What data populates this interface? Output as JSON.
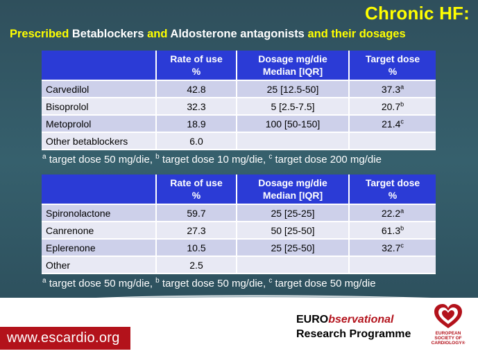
{
  "header": {
    "title": "Chronic HF:",
    "subtitle_parts": [
      "Prescribed ",
      "Betablockers",
      " and ",
      "Aldosterone antagonists",
      " and their dosages"
    ]
  },
  "table1": {
    "headers": [
      {
        "line1": "",
        "line2": ""
      },
      {
        "line1": "Rate of use",
        "line2": "%"
      },
      {
        "line1": "Dosage mg/die",
        "line2": "Median [IQR]"
      },
      {
        "line1": "Target dose",
        "line2": "%"
      }
    ],
    "rows": [
      {
        "drug": "Carvedilol",
        "rate": "42.8",
        "dosage": "25 [12.5-50]",
        "target": "37.3",
        "sup": "a"
      },
      {
        "drug": "Bisoprolol",
        "rate": "32.3",
        "dosage": "5 [2.5-7.5]",
        "target": "20.7",
        "sup": "b"
      },
      {
        "drug": "Metoprolol",
        "rate": "18.9",
        "dosage": "100 [50-150]",
        "target": "21.4",
        "sup": "c"
      },
      {
        "drug": "Other betablockers",
        "rate": "6.0",
        "dosage": "",
        "target": "",
        "sup": ""
      }
    ],
    "footnote": [
      {
        "sup": "a",
        "text": " target dose 50 mg/die, "
      },
      {
        "sup": "b",
        "text": " target dose 10 mg/die, "
      },
      {
        "sup": "c",
        "text": " target dose 200 mg/die"
      }
    ]
  },
  "table2": {
    "headers": [
      {
        "line1": "",
        "line2": ""
      },
      {
        "line1": "Rate of use",
        "line2": "%"
      },
      {
        "line1": "Dosage mg/die",
        "line2": "Median [IQR]"
      },
      {
        "line1": "Target dose",
        "line2": "%"
      }
    ],
    "rows": [
      {
        "drug": "Spironolactone",
        "rate": "59.7",
        "dosage": "25 [25-25]",
        "target": "22.2",
        "sup": "a"
      },
      {
        "drug": "Canrenone",
        "rate": "27.3",
        "dosage": "50 [25-50]",
        "target": "61.3",
        "sup": "b"
      },
      {
        "drug": "Eplerenone",
        "rate": "10.5",
        "dosage": "25 [25-50]",
        "target": "32.7",
        "sup": "c"
      },
      {
        "drug": "Other",
        "rate": "2.5",
        "dosage": "",
        "target": "",
        "sup": ""
      }
    ],
    "footnote": [
      {
        "sup": "a",
        "text": " target dose 50 mg/die, "
      },
      {
        "sup": "b",
        "text": " target dose 50 mg/die, "
      },
      {
        "sup": "c",
        "text": " target dose 50 mg/die"
      }
    ]
  },
  "footer": {
    "url": "www.escardio.org",
    "program_euro": "EURO",
    "program_bserv": "bservational",
    "program_line2": "Research Programme",
    "logo_lines": [
      "EUROPEAN",
      "SOCIETY OF",
      "CARDIOLOGY®"
    ],
    "logo_icon": "heart-logo-icon",
    "accent_color": "#b3121b",
    "table_header_color": "#2b3bd6"
  }
}
